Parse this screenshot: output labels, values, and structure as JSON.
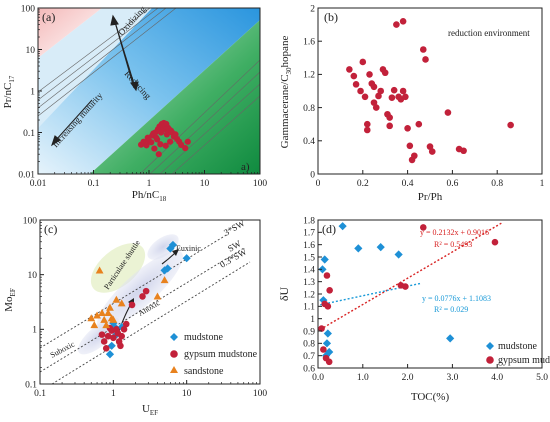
{
  "figure": {
    "panels": [
      {
        "id": "a",
        "tag": "(a)",
        "corner_tag": "a)"
      },
      {
        "id": "b",
        "tag": "(b)"
      },
      {
        "id": "c",
        "tag": "(c)"
      },
      {
        "id": "d",
        "tag": "(d)"
      }
    ]
  },
  "colors": {
    "red_marker": "#c2213a",
    "blue_marker": "#1e90d6",
    "orange_marker": "#e8821e",
    "zone_pink": "#f6c9c9",
    "zone_blue": "#43a7e8",
    "zone_green": "#19944a",
    "red_trend": "#d82222",
    "blue_trend": "#1a9ad8"
  },
  "chart_data": [
    {
      "id": "a",
      "type": "scatter",
      "xscale": "log",
      "yscale": "log",
      "xlim": [
        0.01,
        100
      ],
      "ylim": [
        0.01,
        100
      ],
      "xlabel": "Ph/nC18",
      "ylabel": "Pr/nC17",
      "xticks": [
        "0.01",
        "0.1",
        "1",
        "10",
        "100"
      ],
      "yticks": [
        "0.01",
        "0.1",
        "1",
        "10",
        "100"
      ],
      "zones": [
        "pink (oxidizing)",
        "light blue",
        "blue",
        "green (reducing)"
      ],
      "annotations": [
        "Oxidizing",
        "Reducing",
        "Increasing maturity"
      ],
      "series": [
        {
          "marker": "red-circle",
          "points": [
            [
              0.72,
              0.051
            ],
            [
              0.8,
              0.06
            ],
            [
              0.9,
              0.049
            ],
            [
              0.95,
              0.075
            ],
            [
              1.0,
              0.065
            ],
            [
              1.1,
              0.058
            ],
            [
              1.15,
              0.085
            ],
            [
              1.2,
              0.095
            ],
            [
              1.3,
              0.1
            ],
            [
              1.35,
              0.075
            ],
            [
              1.4,
              0.068
            ],
            [
              1.45,
              0.12
            ],
            [
              1.5,
              0.11
            ],
            [
              1.55,
              0.14
            ],
            [
              1.6,
              0.13
            ],
            [
              1.65,
              0.1
            ],
            [
              1.7,
              0.16
            ],
            [
              1.75,
              0.15
            ],
            [
              1.8,
              0.13
            ],
            [
              1.85,
              0.17
            ],
            [
              1.9,
              0.12
            ],
            [
              2.0,
              0.14
            ],
            [
              2.05,
              0.16
            ],
            [
              2.1,
              0.09
            ],
            [
              2.2,
              0.13
            ],
            [
              2.3,
              0.12
            ],
            [
              2.4,
              0.06
            ],
            [
              2.5,
              0.11
            ],
            [
              2.6,
              0.1
            ],
            [
              2.8,
              0.08
            ],
            [
              3.0,
              0.09
            ],
            [
              3.2,
              0.07
            ],
            [
              3.5,
              0.06
            ],
            [
              3.8,
              0.05
            ],
            [
              4.5,
              0.042
            ],
            [
              5.0,
              0.06
            ],
            [
              1.5,
              0.03
            ],
            [
              1.25,
              0.041
            ],
            [
              1.6,
              0.052
            ],
            [
              2.0,
              0.048
            ]
          ]
        }
      ]
    },
    {
      "id": "b",
      "type": "scatter",
      "xlim": [
        0,
        1
      ],
      "ylim": [
        0,
        2
      ],
      "xlabel": "Pr/Ph",
      "ylabel": "Gammacerane/C30hopane",
      "xticks": [
        "0",
        "0.2",
        "0.4",
        "0.6",
        "0.8",
        "1"
      ],
      "yticks": [
        "0",
        "0.4",
        "0.8",
        "1.2",
        "1.6",
        "2"
      ],
      "annotations": [
        "reduction environment"
      ],
      "series": [
        {
          "marker": "red-circle",
          "points": [
            [
              0.14,
              1.26
            ],
            [
              0.16,
              1.18
            ],
            [
              0.17,
              1.08
            ],
            [
              0.19,
              1.0
            ],
            [
              0.2,
              1.35
            ],
            [
              0.21,
              0.93
            ],
            [
              0.22,
              0.6
            ],
            [
              0.22,
              0.53
            ],
            [
              0.23,
              1.2
            ],
            [
              0.24,
              1.09
            ],
            [
              0.25,
              1.05
            ],
            [
              0.25,
              0.86
            ],
            [
              0.26,
              0.8
            ],
            [
              0.27,
              0.94
            ],
            [
              0.28,
              1.0
            ],
            [
              0.29,
              1.26
            ],
            [
              0.3,
              1.22
            ],
            [
              0.31,
              0.72
            ],
            [
              0.32,
              0.68
            ],
            [
              0.32,
              0.58
            ],
            [
              0.33,
              0.92
            ],
            [
              0.34,
              1.01
            ],
            [
              0.35,
              1.8
            ],
            [
              0.36,
              0.93
            ],
            [
              0.37,
              0.9
            ],
            [
              0.38,
              1.0
            ],
            [
              0.38,
              1.84
            ],
            [
              0.39,
              0.93
            ],
            [
              0.4,
              0.55
            ],
            [
              0.41,
              0.34
            ],
            [
              0.42,
              0.17
            ],
            [
              0.43,
              0.22
            ],
            [
              0.45,
              0.6
            ],
            [
              0.47,
              1.5
            ],
            [
              0.48,
              1.38
            ],
            [
              0.5,
              0.33
            ],
            [
              0.51,
              0.27
            ],
            [
              0.58,
              0.74
            ],
            [
              0.63,
              0.3
            ],
            [
              0.65,
              0.28
            ],
            [
              0.86,
              0.59
            ]
          ]
        }
      ]
    },
    {
      "id": "c",
      "type": "scatter",
      "xscale": "log",
      "yscale": "log",
      "xlim": [
        0.1,
        100
      ],
      "ylim": [
        0.1,
        100
      ],
      "xlabel": "UEF",
      "ylabel": "MoEF",
      "xticks": [
        "0.1",
        "1",
        "10",
        "100"
      ],
      "yticks": [
        "0.1",
        "1",
        "10",
        "100"
      ],
      "reference_lines": [
        "3*SW",
        "SW",
        "0.3*SW"
      ],
      "annotations": [
        "Particulate shuttle",
        "Euxinic",
        "Anoxic",
        "Suboxic"
      ],
      "legend": {
        "placement": "bottom-right",
        "entries": [
          "mudstone",
          "gypsum mudstone",
          "sandstone"
        ]
      },
      "series": [
        {
          "name": "mudstone",
          "marker": "blue-diamond",
          "points": [
            [
              0.9,
              0.35
            ],
            [
              0.95,
              0.5
            ],
            [
              1.0,
              1.3
            ],
            [
              1.05,
              1.1
            ],
            [
              1.1,
              0.8
            ],
            [
              1.3,
              1.1
            ],
            [
              5.0,
              12
            ],
            [
              5.5,
              13
            ],
            [
              6.0,
              30
            ],
            [
              6.5,
              35
            ],
            [
              10.0,
              20
            ]
          ]
        },
        {
          "name": "gypsum mudstone",
          "marker": "red-circle",
          "points": [
            [
              0.7,
              0.8
            ],
            [
              0.75,
              0.6
            ],
            [
              0.8,
              0.45
            ],
            [
              0.85,
              0.75
            ],
            [
              0.9,
              1.05
            ],
            [
              0.95,
              0.95
            ],
            [
              1.0,
              0.7
            ],
            [
              1.1,
              1.0
            ],
            [
              1.15,
              0.85
            ],
            [
              1.2,
              0.6
            ],
            [
              1.25,
              0.5
            ],
            [
              1.3,
              0.75
            ],
            [
              1.4,
              1.0
            ],
            [
              1.5,
              1.25
            ],
            [
              1.8,
              2.8
            ],
            [
              2.5,
              4.0
            ],
            [
              2.8,
              5.0
            ]
          ]
        },
        {
          "name": "sandstone",
          "marker": "orange-triangle",
          "points": [
            [
              0.5,
              1.6
            ],
            [
              0.55,
              1.2
            ],
            [
              0.6,
              1.8
            ],
            [
              0.65,
              12
            ],
            [
              0.7,
              2.0
            ],
            [
              0.75,
              1.5
            ],
            [
              0.8,
              1.2
            ],
            [
              0.85,
              2.0
            ],
            [
              0.9,
              2.5
            ],
            [
              0.95,
              1.6
            ],
            [
              1.0,
              1.5
            ],
            [
              1.1,
              3.5
            ],
            [
              1.3,
              3.0
            ],
            [
              4.0,
              4.0
            ],
            [
              5.0,
              8.0
            ]
          ]
        }
      ]
    },
    {
      "id": "d",
      "type": "scatter",
      "xlim": [
        0,
        5
      ],
      "ylim": [
        0.6,
        1.8
      ],
      "xlabel": "TOC(%)",
      "ylabel": "δU",
      "xticks": [
        "0.0",
        "1.0",
        "2.0",
        "3.0",
        "4.0",
        "5.0"
      ],
      "yticks": [
        "0.6",
        "0.7",
        "0.8",
        "0.9",
        "1",
        "1.1",
        "1.2",
        "1.3",
        "1.4",
        "1.5",
        "1.6",
        "1.7",
        "1.8"
      ],
      "legend": {
        "placement": "bottom-right",
        "entries": [
          "mudstone",
          "gypsum mudstone"
        ]
      },
      "series": [
        {
          "name": "mudstone",
          "marker": "blue-diamond",
          "points": [
            [
              0.1,
              1.4
            ],
            [
              0.12,
              1.15
            ],
            [
              0.15,
              1.48
            ],
            [
              0.18,
              0.7
            ],
            [
              0.2,
              0.8
            ],
            [
              0.22,
              0.88
            ],
            [
              0.25,
              0.73
            ],
            [
              0.55,
              1.75
            ],
            [
              0.9,
              1.57
            ],
            [
              1.4,
              1.58
            ],
            [
              1.8,
              1.52
            ],
            [
              2.95,
              0.84
            ]
          ]
        },
        {
          "name": "gypsum mudstone",
          "marker": "red-circle",
          "points": [
            [
              0.08,
              0.92
            ],
            [
              0.12,
              0.75
            ],
            [
              0.15,
              1.12
            ],
            [
              0.18,
              0.68
            ],
            [
              0.2,
              1.35
            ],
            [
              0.22,
              1.1
            ],
            [
              0.25,
              0.65
            ],
            [
              0.26,
              1.23
            ],
            [
              1.85,
              1.27
            ],
            [
              1.95,
              1.26
            ],
            [
              2.35,
              1.74
            ],
            [
              3.95,
              1.62
            ]
          ]
        }
      ],
      "trendlines": [
        {
          "color": "red",
          "equation": "y = 0.2132x + 0.9016",
          "r2": "R² = 0.5493",
          "slope": 0.2132,
          "intercept": 0.9016
        },
        {
          "color": "blue",
          "equation": "y = 0.0776x + 1.1083",
          "r2": "R² = 0.029",
          "slope": 0.0776,
          "intercept": 1.1083
        }
      ]
    }
  ]
}
